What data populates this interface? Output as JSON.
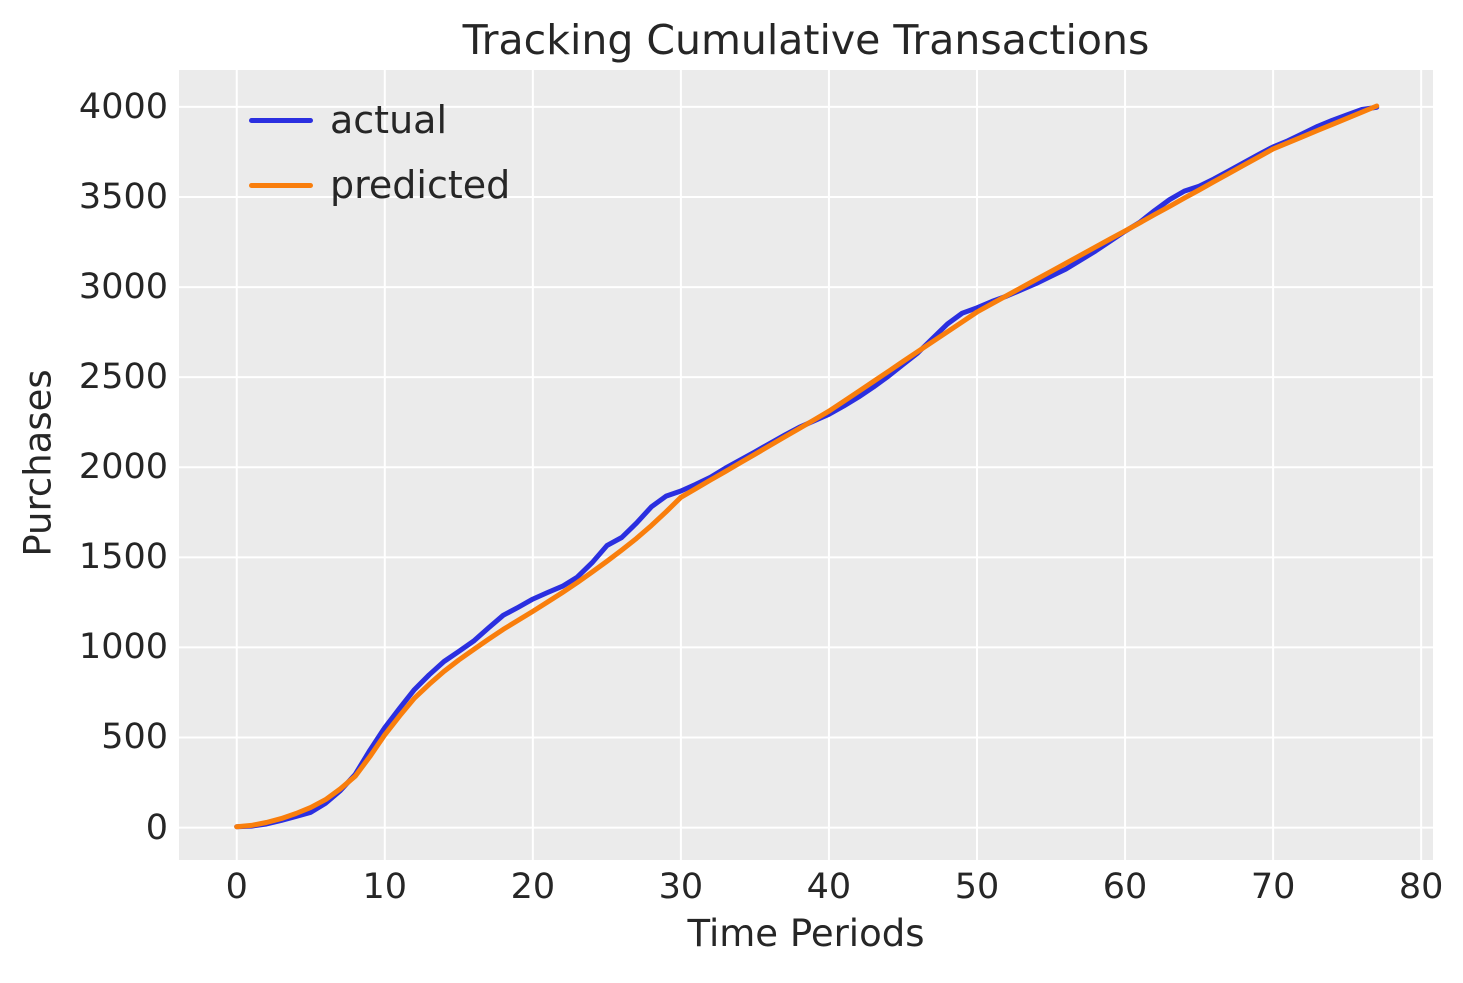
{
  "figure": {
    "title": "Tracking Cumulative Transactions",
    "background": "#ffffff",
    "axes_background": "#ebebeb",
    "grid_color": "#ffffff",
    "text_color": "#262626"
  },
  "legend": {
    "position": "upper left",
    "items": [
      {
        "label": "actual",
        "color": "#2b2fe0"
      },
      {
        "label": "predicted",
        "color": "#f97e0c"
      }
    ]
  },
  "chart_data": {
    "type": "line",
    "title": "Tracking Cumulative Transactions",
    "xlabel": "Time Periods",
    "ylabel": "Purchases",
    "grid": true,
    "legend_position": "upper left",
    "xlim": [
      -3.9,
      80.8
    ],
    "ylim": [
      -180,
      4205
    ],
    "xticks": [
      0,
      10,
      20,
      30,
      40,
      50,
      60,
      70,
      80
    ],
    "yticks": [
      0,
      500,
      1000,
      1500,
      2000,
      2500,
      3000,
      3500,
      4000
    ],
    "x": [
      0,
      1,
      2,
      3,
      4,
      5,
      6,
      7,
      8,
      9,
      10,
      11,
      12,
      13,
      14,
      15,
      16,
      17,
      18,
      19,
      20,
      21,
      22,
      23,
      24,
      25,
      26,
      27,
      28,
      29,
      30,
      31,
      32,
      33,
      34,
      35,
      36,
      37,
      38,
      39,
      40,
      41,
      42,
      43,
      44,
      45,
      46,
      47,
      48,
      49,
      50,
      51,
      52,
      53,
      54,
      55,
      56,
      57,
      58,
      59,
      60,
      61,
      62,
      63,
      64,
      65,
      66,
      67,
      68,
      69,
      70,
      71,
      72,
      73,
      74,
      75,
      76,
      77
    ],
    "series": [
      {
        "name": "actual",
        "color": "#2b2fe0",
        "values": [
          5,
          8,
          20,
          40,
          62,
          85,
          135,
          205,
          295,
          430,
          555,
          662,
          766,
          848,
          922,
          978,
          1035,
          1108,
          1178,
          1222,
          1268,
          1305,
          1340,
          1390,
          1470,
          1565,
          1610,
          1690,
          1780,
          1840,
          1868,
          1905,
          1945,
          1995,
          2040,
          2085,
          2132,
          2178,
          2222,
          2258,
          2294,
          2340,
          2390,
          2445,
          2505,
          2570,
          2635,
          2715,
          2795,
          2855,
          2885,
          2920,
          2950,
          2985,
          3020,
          3060,
          3100,
          3150,
          3200,
          3255,
          3310,
          3360,
          3425,
          3485,
          3533,
          3560,
          3600,
          3645,
          3690,
          3735,
          3778,
          3812,
          3852,
          3892,
          3926,
          3956,
          3986,
          3998
        ]
      },
      {
        "name": "predicted",
        "color": "#f97e0c",
        "values": [
          5,
          12,
          28,
          50,
          78,
          112,
          155,
          215,
          285,
          395,
          515,
          620,
          718,
          795,
          867,
          930,
          988,
          1045,
          1100,
          1150,
          1200,
          1252,
          1305,
          1360,
          1418,
          1478,
          1540,
          1605,
          1676,
          1753,
          1833,
          1881,
          1929,
          1976,
          2024,
          2072,
          2120,
          2168,
          2215,
          2263,
          2311,
          2366,
          2421,
          2476,
          2531,
          2587,
          2642,
          2697,
          2752,
          2807,
          2862,
          2907,
          2952,
          2997,
          3042,
          3087,
          3132,
          3177,
          3222,
          3267,
          3312,
          3357,
          3403,
          3448,
          3494,
          3539,
          3585,
          3630,
          3676,
          3721,
          3767,
          3801,
          3835,
          3869,
          3903,
          3937,
          3971,
          4005
        ]
      }
    ]
  }
}
